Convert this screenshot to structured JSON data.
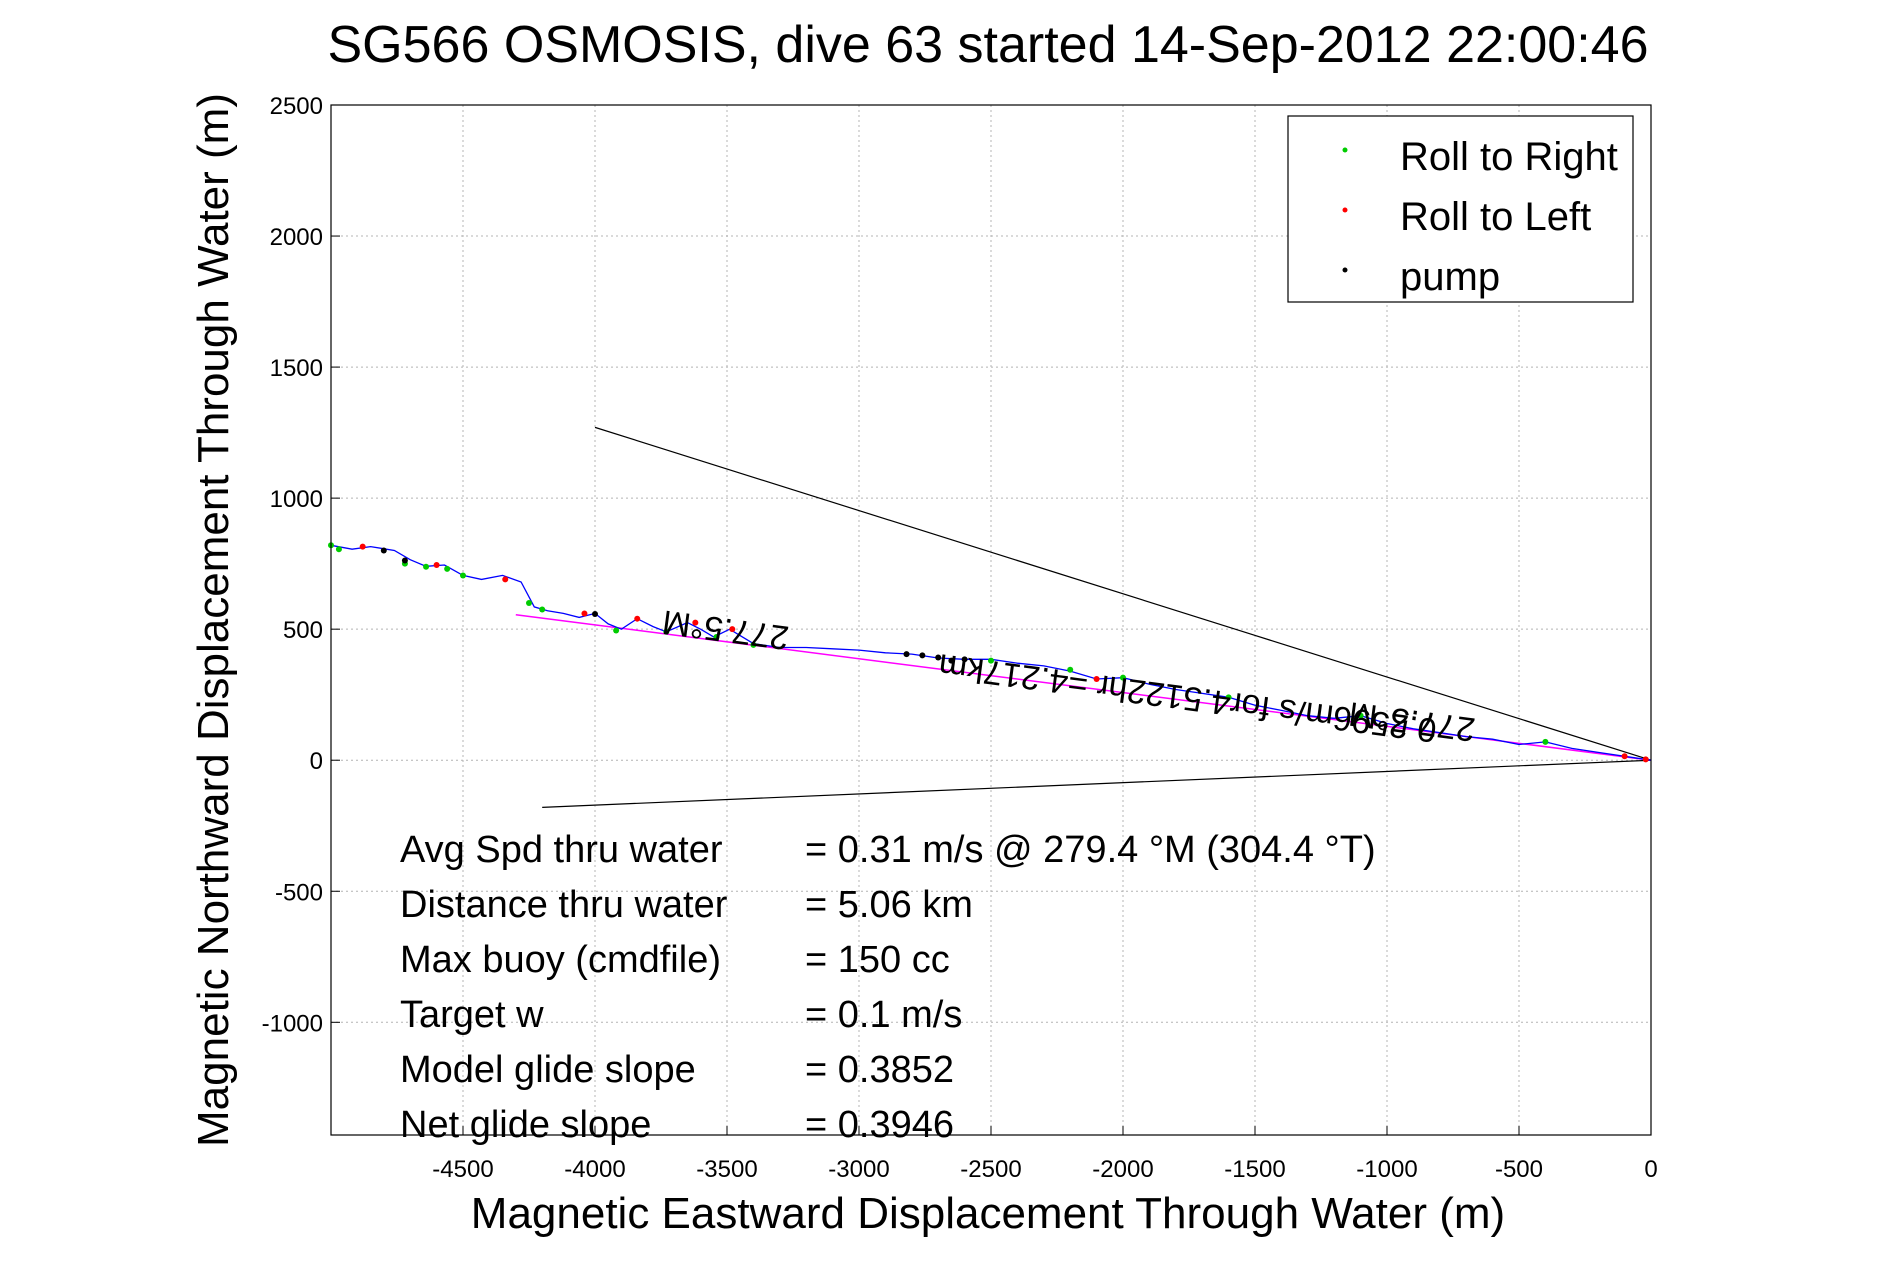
{
  "chart_data": {
    "type": "scatter",
    "title": "SG566 OSMOSIS, dive 63 started 14-Sep-2012 22:00:46",
    "xlabel": "Magnetic Eastward Displacement Through Water (m)",
    "ylabel": "Magnetic Northward Displacement Through Water (m)",
    "xlim": [
      -5000,
      0
    ],
    "ylim": [
      -1430,
      2500
    ],
    "xticks": [
      -4500,
      -4000,
      -3500,
      -3000,
      -2500,
      -2000,
      -1500,
      -1000,
      -500,
      0
    ],
    "yticks": [
      -1000,
      -500,
      0,
      500,
      1000,
      1500,
      2000,
      2500
    ],
    "grid": true,
    "legend": {
      "position": "top-right",
      "entries": [
        {
          "name": "Roll to Right",
          "color": "#00cc00"
        },
        {
          "name": "Roll to Left",
          "color": "#ff0000"
        },
        {
          "name": "pump",
          "color": "#000000"
        }
      ]
    },
    "track": {
      "color": "#0000ff",
      "points": [
        [
          -5000,
          820
        ],
        [
          -4920,
          805
        ],
        [
          -4850,
          815
        ],
        [
          -4760,
          800
        ],
        [
          -4700,
          765
        ],
        [
          -4640,
          740
        ],
        [
          -4570,
          745
        ],
        [
          -4500,
          705
        ],
        [
          -4430,
          690
        ],
        [
          -4350,
          705
        ],
        [
          -4280,
          680
        ],
        [
          -4230,
          585
        ],
        [
          -4180,
          570
        ],
        [
          -4120,
          560
        ],
        [
          -4060,
          545
        ],
        [
          -4000,
          560
        ],
        [
          -3950,
          520
        ],
        [
          -3900,
          500
        ],
        [
          -3840,
          540
        ],
        [
          -3780,
          510
        ],
        [
          -3730,
          490
        ],
        [
          -3650,
          525
        ],
        [
          -3600,
          500
        ],
        [
          -3550,
          470
        ],
        [
          -3490,
          500
        ],
        [
          -3400,
          445
        ],
        [
          -3300,
          430
        ],
        [
          -3200,
          430
        ],
        [
          -3100,
          425
        ],
        [
          -3000,
          420
        ],
        [
          -2900,
          410
        ],
        [
          -2800,
          405
        ],
        [
          -2700,
          390
        ],
        [
          -2600,
          385
        ],
        [
          -2500,
          385
        ],
        [
          -2400,
          370
        ],
        [
          -2300,
          360
        ],
        [
          -2200,
          340
        ],
        [
          -2100,
          310
        ],
        [
          -2000,
          315
        ],
        [
          -1900,
          290
        ],
        [
          -1800,
          270
        ],
        [
          -1700,
          255
        ],
        [
          -1600,
          240
        ],
        [
          -1500,
          210
        ],
        [
          -1400,
          190
        ],
        [
          -1300,
          170
        ],
        [
          -1200,
          160
        ],
        [
          -1100,
          170
        ],
        [
          -1000,
          140
        ],
        [
          -900,
          120
        ],
        [
          -800,
          105
        ],
        [
          -700,
          90
        ],
        [
          -600,
          80
        ],
        [
          -500,
          60
        ],
        [
          -400,
          70
        ],
        [
          -300,
          45
        ],
        [
          -200,
          30
        ],
        [
          -100,
          15
        ],
        [
          0,
          0
        ]
      ]
    },
    "fit_line": {
      "color": "#ff00ff",
      "from": [
        -4300,
        555
      ],
      "to": [
        0,
        0
      ]
    },
    "cone_lines": [
      {
        "from": [
          -4000,
          1270
        ],
        "to": [
          0,
          0
        ]
      },
      {
        "from": [
          -4200,
          -180
        ],
        "to": [
          0,
          0
        ]
      }
    ],
    "roll_right_points": [
      [
        -5000,
        820
      ],
      [
        -4970,
        805
      ],
      [
        -4720,
        750
      ],
      [
        -4640,
        738
      ],
      [
        -4560,
        730
      ],
      [
        -4500,
        705
      ],
      [
        -4250,
        600
      ],
      [
        -4200,
        575
      ],
      [
        -3920,
        495
      ],
      [
        -3730,
        490
      ],
      [
        -3540,
        470
      ],
      [
        -3400,
        440
      ],
      [
        -2500,
        380
      ],
      [
        -2200,
        345
      ],
      [
        -2000,
        315
      ],
      [
        -1600,
        240
      ],
      [
        -1100,
        170
      ],
      [
        -400,
        70
      ]
    ],
    "roll_left_points": [
      [
        -4880,
        815
      ],
      [
        -4600,
        745
      ],
      [
        -4340,
        690
      ],
      [
        -4040,
        560
      ],
      [
        -3840,
        540
      ],
      [
        -3620,
        525
      ],
      [
        -3480,
        500
      ],
      [
        -2100,
        310
      ],
      [
        -100,
        15
      ],
      [
        -20,
        3
      ]
    ],
    "pump_points": [
      [
        -4800,
        800
      ],
      [
        -4720,
        762
      ],
      [
        -4000,
        558
      ],
      [
        -2820,
        405
      ],
      [
        -2760,
        400
      ],
      [
        -2700,
        392
      ],
      [
        -2650,
        380
      ],
      [
        -2600,
        385
      ]
    ],
    "annotations": [
      {
        "text": "277.5°M",
        "x": -3500,
        "y": 540,
        "rotate": 187.5
      },
      {
        "text": "277.5°M",
        "x": -900,
        "y": 190,
        "rotate": 187.5
      },
      {
        "text": "0.2596m/s for4.5122hr =4.217km",
        "x": -1750,
        "y": 280,
        "rotate": 187.5
      }
    ],
    "stats": [
      {
        "label": "Avg Spd thru water",
        "value": "=  0.31 m/s @ 279.4 °M (304.4 °T)"
      },
      {
        "label": "Distance thru water",
        "value": "=  5.06 km"
      },
      {
        "label": "Max buoy (cmdfile)",
        "value": "= 150 cc"
      },
      {
        "label": "Target w",
        "value": "= 0.1 m/s"
      },
      {
        "label": "Model glide slope",
        "value": "= 0.3852"
      },
      {
        "label": "Net glide slope",
        "value": "= 0.3946"
      }
    ]
  }
}
